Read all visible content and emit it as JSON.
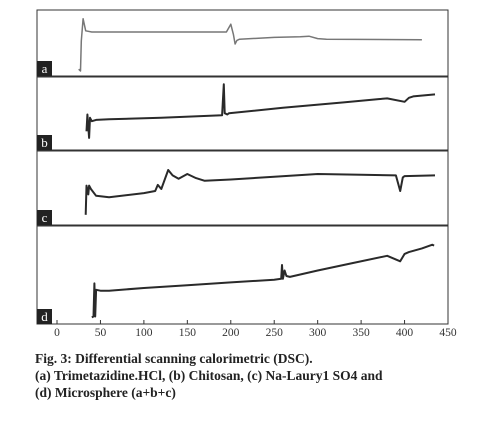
{
  "chart_data": {
    "type": "line",
    "x_ticks": [
      0,
      50,
      100,
      150,
      200,
      250,
      300,
      350,
      400,
      450
    ],
    "xlim": [
      0,
      450
    ],
    "grid": false,
    "panels": [
      {
        "label": "a",
        "x": [
          25,
          27,
          28,
          30,
          33,
          40,
          100,
          195,
          200,
          203,
          205,
          207,
          210,
          250,
          280,
          290,
          300,
          310,
          420
        ],
        "y": [
          0.08,
          0.05,
          0.55,
          0.92,
          0.72,
          0.7,
          0.7,
          0.7,
          0.83,
          0.66,
          0.5,
          0.56,
          0.58,
          0.61,
          0.62,
          0.63,
          0.59,
          0.58,
          0.57
        ]
      },
      {
        "label": "b",
        "x": [
          34,
          35,
          37,
          38,
          40,
          45,
          60,
          120,
          190,
          192,
          193,
          196,
          198,
          260,
          330,
          370,
          380,
          400,
          405,
          410,
          435
        ],
        "y": [
          0.25,
          0.5,
          0.15,
          0.45,
          0.4,
          0.42,
          0.43,
          0.45,
          0.49,
          0.95,
          0.52,
          0.5,
          0.52,
          0.6,
          0.68,
          0.73,
          0.74,
          0.69,
          0.75,
          0.77,
          0.8
        ]
      },
      {
        "label": "c",
        "x": [
          33,
          34,
          36,
          37,
          39,
          45,
          60,
          100,
          113,
          116,
          120,
          128,
          133,
          140,
          150,
          160,
          170,
          200,
          250,
          300,
          350,
          390,
          395,
          398,
          400,
          435
        ],
        "y": [
          0.12,
          0.55,
          0.42,
          0.55,
          0.5,
          0.4,
          0.38,
          0.44,
          0.47,
          0.56,
          0.5,
          0.78,
          0.7,
          0.65,
          0.72,
          0.66,
          0.62,
          0.64,
          0.68,
          0.72,
          0.71,
          0.7,
          0.47,
          0.67,
          0.69,
          0.7
        ]
      },
      {
        "label": "d",
        "x": [
          40,
          42,
          43,
          44,
          45,
          50,
          60,
          100,
          150,
          200,
          250,
          258,
          259,
          260,
          262,
          264,
          268,
          300,
          340,
          380,
          395,
          400,
          405,
          420,
          432,
          434
        ],
        "y": [
          0.05,
          0.06,
          0.42,
          0.06,
          0.35,
          0.34,
          0.34,
          0.37,
          0.4,
          0.43,
          0.46,
          0.47,
          0.62,
          0.47,
          0.56,
          0.5,
          0.49,
          0.56,
          0.64,
          0.72,
          0.66,
          0.74,
          0.76,
          0.8,
          0.84,
          0.83
        ]
      }
    ]
  },
  "caption": {
    "line1": "Fig. 3: Differential scanning calorimetric (DSC).",
    "line2": "(a) Trimetazidine.HCl, (b) Chitosan, (c) Na-Laury1 SO4 and",
    "line3": "(d) Microsphere (a+b+c)"
  }
}
